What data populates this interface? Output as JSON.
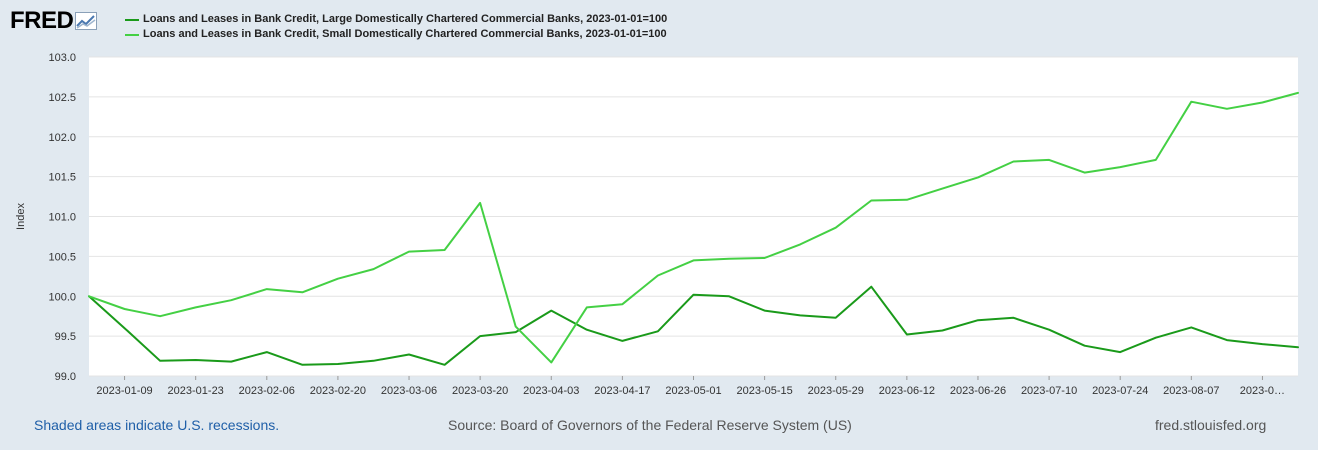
{
  "brand": {
    "logo_text": "FRED"
  },
  "colors": {
    "series_large": "#1a9a1a",
    "series_small": "#44d044",
    "plot_bg": "#ffffff",
    "page_bg": "#e1e9f0",
    "grid": "#e4e4e4"
  },
  "chart_data": {
    "type": "line",
    "title": "",
    "ylabel": "Index",
    "xlabel": "",
    "ylim": [
      99.0,
      103.0
    ],
    "yticks": [
      "103.0",
      "102.5",
      "102.0",
      "101.5",
      "101.0",
      "100.5",
      "100.0",
      "99.5",
      "99.0"
    ],
    "xtick_labels": [
      "2023-01-09",
      "2023-01-23",
      "2023-02-06",
      "2023-02-20",
      "2023-03-06",
      "2023-03-20",
      "2023-04-03",
      "2023-04-17",
      "2023-05-01",
      "2023-05-15",
      "2023-05-29",
      "2023-06-12",
      "2023-06-26",
      "2023-07-10",
      "2023-07-24",
      "2023-08-07",
      "2023-0…"
    ],
    "xtick_weeks": [
      1,
      3,
      5,
      7,
      9,
      11,
      13,
      15,
      17,
      19,
      21,
      23,
      25,
      27,
      29,
      31,
      33
    ],
    "week_count": 34,
    "grid": true,
    "legend_position": "top",
    "series": [
      {
        "name": "Loans and Leases in Bank Credit, Large Domestically Chartered Commercial Banks, 2023-01-01=100",
        "color_key": "series_large",
        "values": [
          100.0,
          99.6,
          99.19,
          99.2,
          99.18,
          99.3,
          99.14,
          99.15,
          99.19,
          99.27,
          99.14,
          99.5,
          99.55,
          99.82,
          99.58,
          99.44,
          99.56,
          100.02,
          100.0,
          99.82,
          99.76,
          99.73,
          100.12,
          99.52,
          99.57,
          99.7,
          99.73,
          99.58,
          99.38,
          99.3,
          99.48,
          99.61,
          99.45,
          99.4,
          99.36
        ]
      },
      {
        "name": "Loans and Leases in Bank Credit, Small Domestically Chartered Commercial Banks, 2023-01-01=100",
        "color_key": "series_small",
        "values": [
          100.0,
          99.84,
          99.75,
          99.86,
          99.95,
          100.09,
          100.05,
          100.22,
          100.34,
          100.56,
          100.58,
          101.17,
          99.62,
          99.17,
          99.86,
          99.9,
          100.26,
          100.45,
          100.47,
          100.48,
          100.65,
          100.86,
          101.2,
          101.21,
          101.35,
          101.49,
          101.69,
          101.71,
          101.55,
          101.62,
          101.71,
          102.44,
          102.35,
          102.43,
          102.55
        ]
      }
    ]
  },
  "footer": {
    "recessions_note": "Shaded areas indicate U.S. recessions.",
    "source": "Source: Board of Governors of the Federal Reserve System (US)",
    "site": "fred.stlouisfed.org"
  }
}
